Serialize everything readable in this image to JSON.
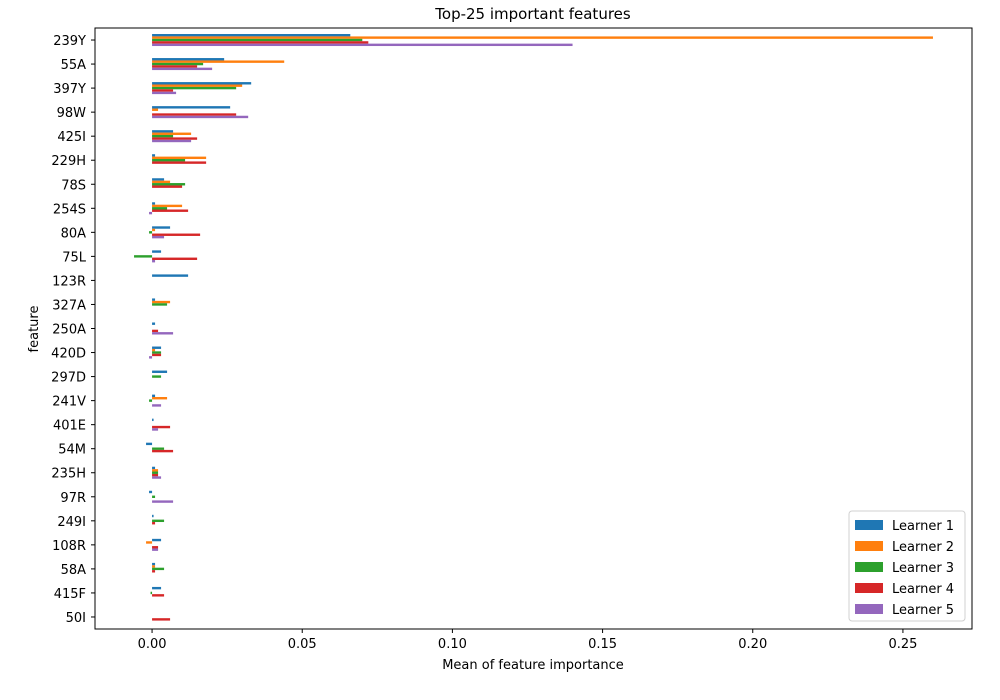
{
  "chart_data": {
    "type": "bar",
    "orientation": "horizontal",
    "title": "Top-25 important features",
    "xlabel": "Mean of feature importance",
    "ylabel": "feature",
    "xlim": [
      -0.019,
      0.273
    ],
    "xticks": [
      0.0,
      0.05,
      0.1,
      0.15,
      0.2,
      0.25
    ],
    "xtick_labels": [
      "0.00",
      "0.05",
      "0.10",
      "0.15",
      "0.20",
      "0.25"
    ],
    "grid": false,
    "legend_position": "bottom-right",
    "categories": [
      "239Y",
      "55A",
      "397Y",
      "98W",
      "425I",
      "229H",
      "78S",
      "254S",
      "80A",
      "75L",
      "123R",
      "327A",
      "250A",
      "420D",
      "297D",
      "241V",
      "401E",
      "54M",
      "235H",
      "97R",
      "249I",
      "108R",
      "58A",
      "415F",
      "50I"
    ],
    "series": [
      {
        "name": "Learner 1",
        "color": "#1f77b4",
        "values": [
          0.066,
          0.024,
          0.033,
          0.026,
          0.007,
          0.001,
          0.004,
          0.001,
          0.006,
          0.003,
          0.012,
          0.001,
          0.001,
          0.003,
          0.005,
          0.001,
          0.0005,
          -0.002,
          0.001,
          -0.001,
          0.0005,
          0.003,
          0.001,
          0.003,
          0.0
        ]
      },
      {
        "name": "Learner 2",
        "color": "#ff7f0e",
        "values": [
          0.26,
          0.044,
          0.03,
          0.002,
          0.013,
          0.018,
          0.006,
          0.01,
          0.001,
          0.0,
          0.0,
          0.006,
          0.0,
          0.001,
          0.0,
          0.005,
          0.0,
          0.0,
          0.002,
          0.0,
          0.0,
          -0.002,
          0.001,
          0.0,
          0.0
        ]
      },
      {
        "name": "Learner 3",
        "color": "#2ca02c",
        "values": [
          0.07,
          0.017,
          0.028,
          0.0,
          0.007,
          0.011,
          0.011,
          0.005,
          -0.001,
          -0.006,
          0.0,
          0.005,
          0.0,
          0.003,
          0.003,
          -0.001,
          0.0,
          0.004,
          0.002,
          0.001,
          0.004,
          0.0,
          0.004,
          -0.0005,
          0.0
        ]
      },
      {
        "name": "Learner 4",
        "color": "#d62728",
        "values": [
          0.072,
          0.015,
          0.007,
          0.028,
          0.015,
          0.018,
          0.01,
          0.012,
          0.016,
          0.015,
          0.0,
          0.0,
          0.002,
          0.003,
          0.0,
          0.0,
          0.006,
          0.007,
          0.002,
          0.0,
          0.001,
          0.002,
          0.001,
          0.004,
          0.006
        ]
      },
      {
        "name": "Learner 5",
        "color": "#9467bd",
        "values": [
          0.14,
          0.02,
          0.008,
          0.032,
          0.013,
          0.0,
          0.0,
          -0.001,
          0.004,
          0.001,
          0.0,
          0.0,
          0.007,
          -0.001,
          0.0,
          0.003,
          0.002,
          0.0,
          0.003,
          0.007,
          0.0,
          0.002,
          0.0,
          0.0,
          0.0
        ]
      }
    ]
  }
}
